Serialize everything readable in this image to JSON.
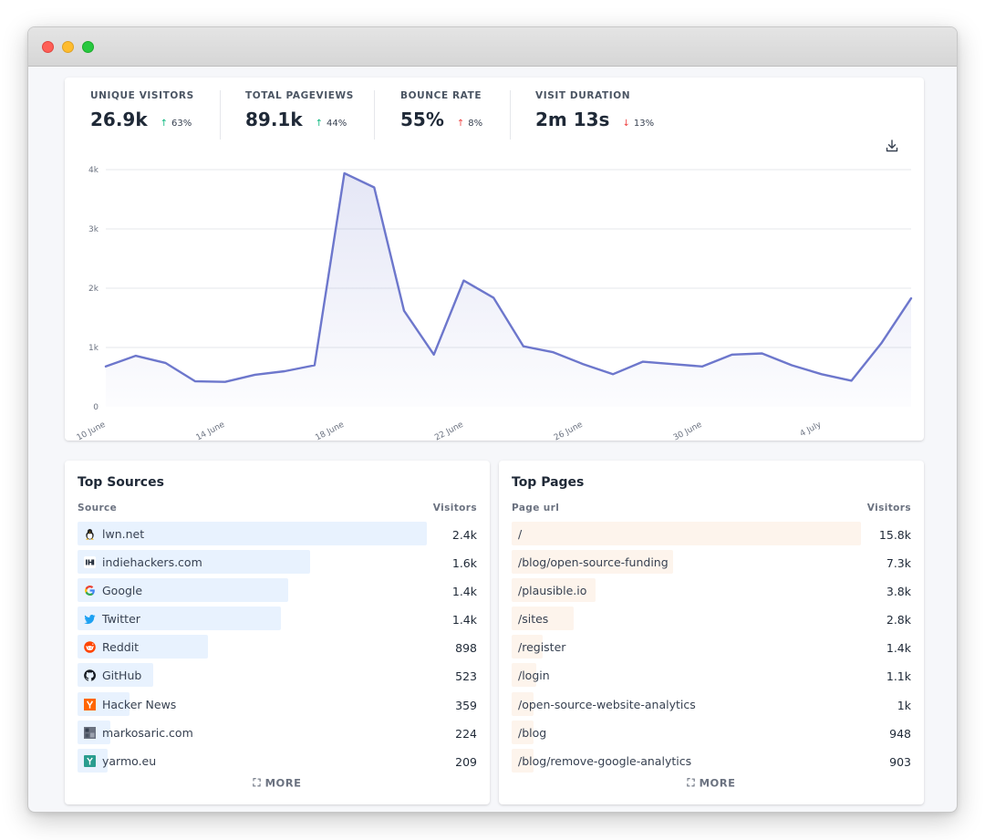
{
  "stats": [
    {
      "label": "UNIQUE VISITORS",
      "value": "26.9k",
      "change": "63%",
      "direction": "up"
    },
    {
      "label": "TOTAL PAGEVIEWS",
      "value": "89.1k",
      "change": "44%",
      "direction": "up"
    },
    {
      "label": "BOUNCE RATE",
      "value": "55%",
      "change": "8%",
      "direction": "up"
    },
    {
      "label": "VISIT DURATION",
      "value": "2m 13s",
      "change": "13%",
      "direction": "down"
    }
  ],
  "colors": {
    "line": "#6d77cc",
    "up": "#10b981",
    "down": "#ef4444",
    "sourceBar": "#e8f2fe",
    "pageBar": "#fdf4ec"
  },
  "chart_data": {
    "type": "area",
    "x": [
      "10 June",
      "11 June",
      "12 June",
      "13 June",
      "14 June",
      "15 June",
      "16 June",
      "17 June",
      "18 June",
      "19 June",
      "20 June",
      "21 June",
      "22 June",
      "23 June",
      "24 June",
      "25 June",
      "26 June",
      "27 June",
      "28 June",
      "29 June",
      "30 June",
      "1 July",
      "2 July",
      "3 July",
      "4 July",
      "5 July",
      "6 July",
      "7 July"
    ],
    "values": [
      680,
      860,
      740,
      430,
      420,
      540,
      600,
      700,
      3940,
      3700,
      1620,
      880,
      2130,
      1840,
      1020,
      920,
      720,
      550,
      760,
      720,
      680,
      880,
      900,
      700,
      550,
      440,
      1070,
      1830
    ],
    "ylim": [
      0,
      4000
    ],
    "yticks": [
      "0",
      "1k",
      "2k",
      "3k",
      "4k"
    ],
    "xticks": [
      "10 June",
      "14 June",
      "18 June",
      "22 June",
      "26 June",
      "30 June",
      "4 July"
    ],
    "grid": true
  },
  "sources": {
    "title": "Top Sources",
    "col_label": "Source",
    "col_value": "Visitors",
    "items": [
      {
        "label": "lwn.net",
        "value": "2.4k",
        "visitors": 2400,
        "icon": "tux-icon"
      },
      {
        "label": "indiehackers.com",
        "value": "1.6k",
        "visitors": 1600,
        "icon": "indiehackers-icon"
      },
      {
        "label": "Google",
        "value": "1.4k",
        "visitors": 1450,
        "icon": "google-icon"
      },
      {
        "label": "Twitter",
        "value": "1.4k",
        "visitors": 1400,
        "icon": "twitter-icon"
      },
      {
        "label": "Reddit",
        "value": "898",
        "visitors": 898,
        "icon": "reddit-icon"
      },
      {
        "label": "GitHub",
        "value": "523",
        "visitors": 523,
        "icon": "github-icon"
      },
      {
        "label": "Hacker News",
        "value": "359",
        "visitors": 359,
        "icon": "hackernews-icon"
      },
      {
        "label": "markosaric.com",
        "value": "224",
        "visitors": 224,
        "icon": "markosaric-icon"
      },
      {
        "label": "yarmo.eu",
        "value": "209",
        "visitors": 209,
        "icon": "yarmo-icon"
      }
    ],
    "more": "MORE"
  },
  "pages": {
    "title": "Top Pages",
    "col_label": "Page url",
    "col_value": "Visitors",
    "items": [
      {
        "label": "/",
        "value": "15.8k",
        "visitors": 15800
      },
      {
        "label": "/blog/open-source-funding",
        "value": "7.3k",
        "visitors": 7300
      },
      {
        "label": "/plausible.io",
        "value": "3.8k",
        "visitors": 3800
      },
      {
        "label": "/sites",
        "value": "2.8k",
        "visitors": 2800
      },
      {
        "label": "/register",
        "value": "1.4k",
        "visitors": 1400
      },
      {
        "label": "/login",
        "value": "1.1k",
        "visitors": 1100
      },
      {
        "label": "/open-source-website-analytics",
        "value": "1k",
        "visitors": 1000
      },
      {
        "label": "/blog",
        "value": "948",
        "visitors": 948
      },
      {
        "label": "/blog/remove-google-analytics",
        "value": "903",
        "visitors": 903
      }
    ],
    "more": "MORE"
  }
}
